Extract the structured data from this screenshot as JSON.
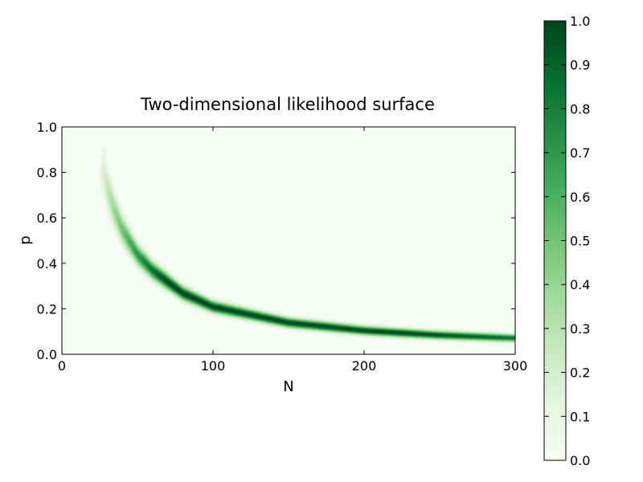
{
  "chart_data": {
    "type": "heatmap",
    "title": "Two-dimensional likelihood surface",
    "xlabel": "N",
    "ylabel": "p",
    "xlim": [
      0,
      300
    ],
    "ylim": [
      0,
      1.0
    ],
    "xticks": [
      0,
      100,
      200,
      300
    ],
    "xtick_labels": [
      "0",
      "100",
      "200",
      "300"
    ],
    "yticks": [
      0.0,
      0.2,
      0.4,
      0.6,
      0.8,
      1.0
    ],
    "ytick_labels": [
      "0.0",
      "0.2",
      "0.4",
      "0.6",
      "0.8",
      "1.0"
    ],
    "colormap": "Greens",
    "color_low": "#f7fcf5",
    "color_high": "#00441b",
    "colorbar": {
      "range": [
        0.0,
        1.0
      ],
      "ticks": [
        0.0,
        0.1,
        0.2,
        0.3,
        0.4,
        0.5,
        0.6,
        0.7,
        0.8,
        0.9,
        1.0
      ],
      "tick_labels": [
        "0.0",
        "0.1",
        "0.2",
        "0.3",
        "0.4",
        "0.5",
        "0.6",
        "0.7",
        "0.8",
        "0.9",
        "1.0"
      ]
    },
    "ridge": {
      "N": [
        28,
        30,
        35,
        40,
        50,
        60,
        80,
        100,
        150,
        200,
        250,
        300
      ],
      "p": [
        0.8,
        0.73,
        0.63,
        0.55,
        0.44,
        0.37,
        0.27,
        0.21,
        0.14,
        0.105,
        0.085,
        0.072
      ],
      "peak_likelihood": 1.0
    }
  }
}
